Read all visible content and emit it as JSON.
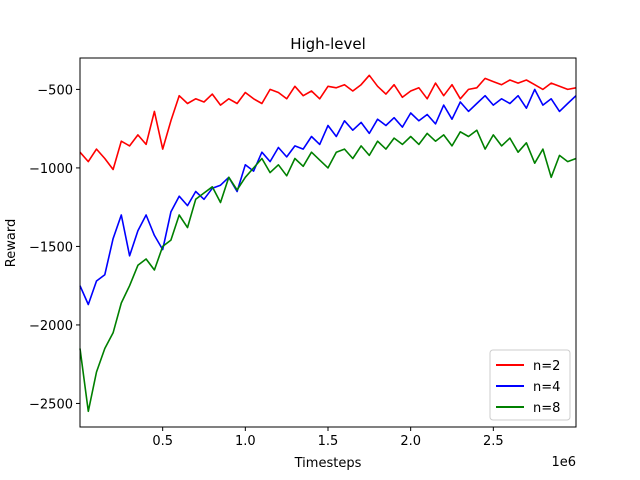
{
  "chart_data": {
    "type": "line",
    "title": "High-level",
    "xlabel": "Timesteps",
    "ylabel": "Reward",
    "x_offset_text": "1e6",
    "xlim": [
      0.0,
      3.0
    ],
    "ylim": [
      -2650,
      -300
    ],
    "xticks": [
      0.5,
      1.0,
      1.5,
      2.0,
      2.5
    ],
    "xtick_labels": [
      "0.5",
      "1.0",
      "1.5",
      "2.0",
      "2.5"
    ],
    "yticks": [
      -2500,
      -2000,
      -1500,
      -1000,
      -500
    ],
    "ytick_labels": [
      "−2500",
      "−2000",
      "−1500",
      "−1000",
      "−500"
    ],
    "grid": false,
    "legend_position": "lower right",
    "series": [
      {
        "name": "n=2",
        "color": "#ff0000",
        "x": [
          0.0,
          0.05,
          0.1,
          0.15,
          0.2,
          0.25,
          0.3,
          0.35,
          0.4,
          0.45,
          0.5,
          0.55,
          0.6,
          0.65,
          0.7,
          0.75,
          0.8,
          0.85,
          0.9,
          0.95,
          1.0,
          1.05,
          1.1,
          1.15,
          1.2,
          1.25,
          1.3,
          1.35,
          1.4,
          1.45,
          1.5,
          1.55,
          1.6,
          1.65,
          1.7,
          1.75,
          1.8,
          1.85,
          1.9,
          1.95,
          2.0,
          2.05,
          2.1,
          2.15,
          2.2,
          2.25,
          2.3,
          2.35,
          2.4,
          2.45,
          2.5,
          2.55,
          2.6,
          2.65,
          2.7,
          2.75,
          2.8,
          2.85,
          2.9,
          2.95,
          3.0
        ],
        "values": [
          -900,
          -960,
          -880,
          -940,
          -1010,
          -830,
          -860,
          -790,
          -850,
          -640,
          -880,
          -700,
          -540,
          -590,
          -560,
          -580,
          -530,
          -600,
          -560,
          -590,
          -520,
          -560,
          -590,
          -500,
          -520,
          -560,
          -480,
          -540,
          -510,
          -560,
          -480,
          -490,
          -470,
          -510,
          -470,
          -410,
          -480,
          -530,
          -470,
          -550,
          -510,
          -490,
          -560,
          -460,
          -540,
          -470,
          -560,
          -500,
          -490,
          -430,
          -450,
          -470,
          -440,
          -460,
          -440,
          -470,
          -500,
          -460,
          -480,
          -500,
          -490
        ]
      },
      {
        "name": "n=4",
        "color": "#0000ff",
        "x": [
          0.0,
          0.05,
          0.1,
          0.15,
          0.2,
          0.25,
          0.3,
          0.35,
          0.4,
          0.45,
          0.5,
          0.55,
          0.6,
          0.65,
          0.7,
          0.75,
          0.8,
          0.85,
          0.9,
          0.95,
          1.0,
          1.05,
          1.1,
          1.15,
          1.2,
          1.25,
          1.3,
          1.35,
          1.4,
          1.45,
          1.5,
          1.55,
          1.6,
          1.65,
          1.7,
          1.75,
          1.8,
          1.85,
          1.9,
          1.95,
          2.0,
          2.05,
          2.1,
          2.15,
          2.2,
          2.25,
          2.3,
          2.35,
          2.4,
          2.45,
          2.5,
          2.55,
          2.6,
          2.65,
          2.7,
          2.75,
          2.8,
          2.85,
          2.9,
          2.95,
          3.0
        ],
        "values": [
          -1750,
          -1870,
          -1720,
          -1680,
          -1450,
          -1300,
          -1560,
          -1400,
          -1300,
          -1430,
          -1520,
          -1280,
          -1180,
          -1240,
          -1150,
          -1200,
          -1130,
          -1110,
          -1060,
          -1150,
          -980,
          -1020,
          -900,
          -960,
          -870,
          -930,
          -860,
          -880,
          -800,
          -850,
          -730,
          -800,
          -700,
          -760,
          -710,
          -780,
          -690,
          -730,
          -680,
          -740,
          -650,
          -700,
          -660,
          -720,
          -600,
          -690,
          -580,
          -640,
          -590,
          -540,
          -600,
          -560,
          -590,
          -540,
          -620,
          -500,
          -600,
          -560,
          -640,
          -590,
          -540
        ]
      },
      {
        "name": "n=8",
        "color": "#008000",
        "x": [
          0.0,
          0.05,
          0.1,
          0.15,
          0.2,
          0.25,
          0.3,
          0.35,
          0.4,
          0.45,
          0.5,
          0.55,
          0.6,
          0.65,
          0.7,
          0.75,
          0.8,
          0.85,
          0.9,
          0.95,
          1.0,
          1.05,
          1.1,
          1.15,
          1.2,
          1.25,
          1.3,
          1.35,
          1.4,
          1.45,
          1.5,
          1.55,
          1.6,
          1.65,
          1.7,
          1.75,
          1.8,
          1.85,
          1.9,
          1.95,
          2.0,
          2.05,
          2.1,
          2.15,
          2.2,
          2.25,
          2.3,
          2.35,
          2.4,
          2.45,
          2.5,
          2.55,
          2.6,
          2.65,
          2.7,
          2.75,
          2.8,
          2.85,
          2.9,
          2.95,
          3.0
        ],
        "values": [
          -2150,
          -2550,
          -2300,
          -2150,
          -2050,
          -1860,
          -1750,
          -1620,
          -1580,
          -1650,
          -1500,
          -1460,
          -1300,
          -1380,
          -1200,
          -1160,
          -1120,
          -1220,
          -1060,
          -1140,
          -1060,
          -1000,
          -940,
          -1030,
          -980,
          -1050,
          -940,
          -990,
          -900,
          -950,
          -1000,
          -900,
          -880,
          -940,
          -860,
          -920,
          -830,
          -880,
          -810,
          -850,
          -800,
          -850,
          -780,
          -830,
          -790,
          -860,
          -770,
          -800,
          -760,
          -880,
          -790,
          -860,
          -810,
          -900,
          -840,
          -970,
          -880,
          -1060,
          -920,
          -960,
          -940
        ]
      }
    ]
  }
}
